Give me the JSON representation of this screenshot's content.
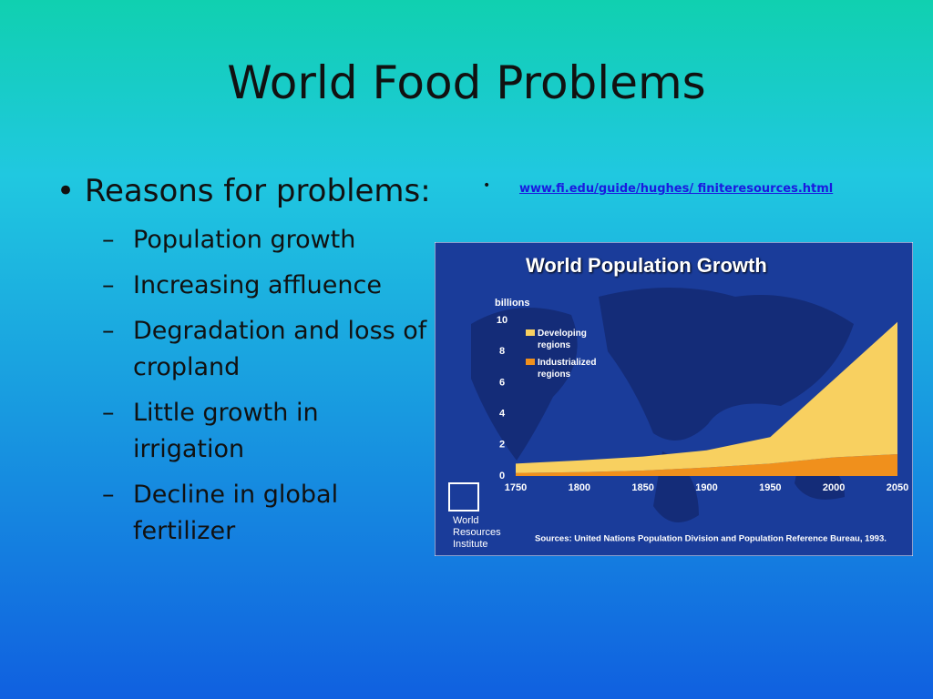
{
  "slide": {
    "title": "World Food Problems",
    "bullet": "Reasons for problems:",
    "subitems": [
      "Population growth",
      "Increasing affluence",
      "Degradation and loss of cropland",
      "Little growth in irrigation",
      "Decline in global fertilizer"
    ],
    "link": "www.fi.edu/guide/hughes/ finiteresources.html"
  },
  "chart_data": {
    "type": "area",
    "stacked": true,
    "title": "World Population Growth",
    "ylabel": "billions",
    "x": [
      1750,
      1800,
      1850,
      1900,
      1950,
      2000,
      2050
    ],
    "xlim": [
      1750,
      2050
    ],
    "xticks": [
      1750,
      1800,
      1850,
      1900,
      1950,
      2000,
      2050
    ],
    "ylim": [
      0,
      10
    ],
    "yticks": [
      0,
      2,
      4,
      6,
      8,
      10
    ],
    "series": [
      {
        "name": "Industrialized regions",
        "color": "#f0901c",
        "values": [
          0.2,
          0.25,
          0.35,
          0.55,
          0.8,
          1.2,
          1.4
        ]
      },
      {
        "name": "Developing regions",
        "color": "#f8d060",
        "values": [
          0.6,
          0.75,
          0.9,
          1.1,
          1.7,
          5.0,
          8.5
        ]
      }
    ],
    "legend_order": [
      1,
      0
    ],
    "logo": [
      "World",
      "Resources",
      "Institute"
    ],
    "source": "Sources: United Nations Population Division and Population Reference Bureau, 1993."
  }
}
